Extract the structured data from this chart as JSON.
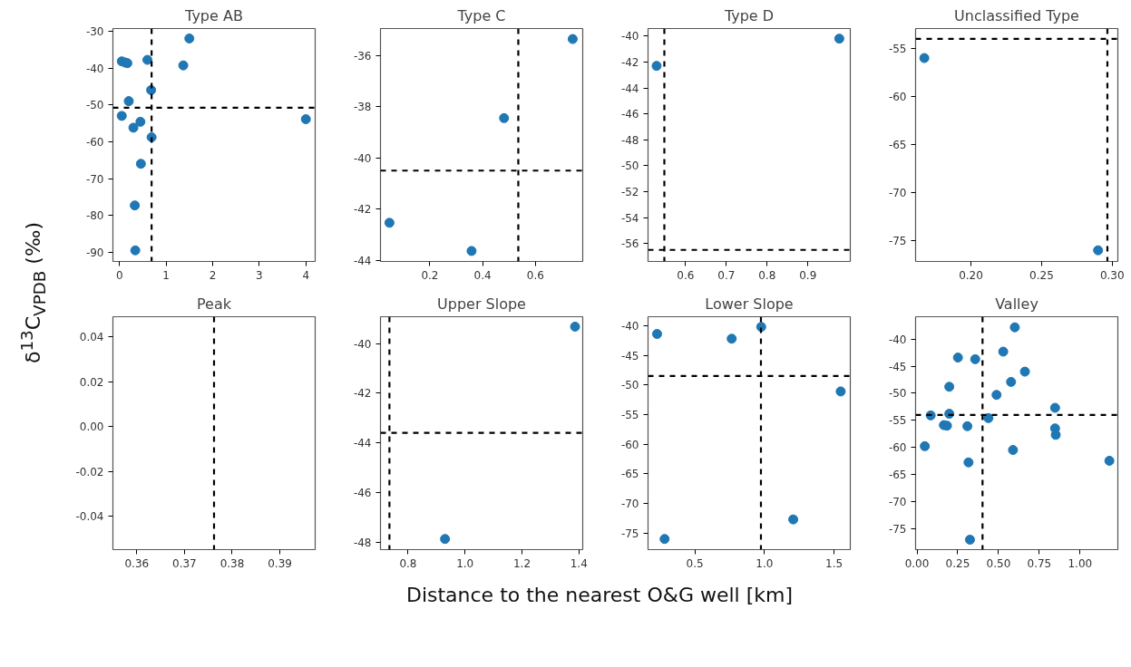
{
  "chart_data": [
    {
      "type": "scatter",
      "title": "Type AB",
      "xlabel": "Distance to the nearest O&G well [km]",
      "ylabel": "δ$^{13}$C$_{VPDB}$ (‰)",
      "marker": "circle",
      "color": "#1f77b4",
      "x": [
        0.05,
        0.12,
        0.17,
        0.6,
        1.5,
        1.37,
        0.68,
        0.2,
        0.05,
        0.45,
        0.3,
        0.69,
        0.46,
        0.33,
        0.34,
        4.0
      ],
      "values": [
        -38.2,
        -38.5,
        -38.7,
        -37.8,
        -32,
        -39.3,
        -46,
        -49,
        -53,
        -54.6,
        -56.2,
        -58.8,
        -66,
        -77.3,
        -89.5,
        -53.9
      ],
      "xlim": [
        -0.14,
        4.2
      ],
      "ylim": [
        -92.5,
        -29.3
      ],
      "xticks": [
        0,
        1,
        2,
        3,
        4
      ],
      "yticks": [
        -90,
        -80,
        -70,
        -60,
        -50,
        -40,
        -30
      ],
      "ref_lines": [
        {
          "axis": "x",
          "value": 0.69,
          "line_style": "dashed"
        },
        {
          "axis": "y",
          "value": -50.8,
          "line_style": "dashed"
        }
      ]
    },
    {
      "type": "scatter",
      "title": "Type C",
      "marker": "circle",
      "color": "#1f77b4",
      "x": [
        0.047,
        0.358,
        0.481,
        0.741
      ],
      "values": [
        -42.54,
        -43.64,
        -38.45,
        -35.36
      ],
      "xlim": [
        0.013,
        0.779
      ],
      "ylim": [
        -44.05,
        -34.95
      ],
      "xticks": [
        0.2,
        0.4,
        0.6
      ],
      "yticks": [
        -44,
        -42,
        -40,
        -38,
        -36
      ],
      "ref_lines": [
        {
          "axis": "x",
          "value": 0.535,
          "line_style": "dashed"
        },
        {
          "axis": "y",
          "value": -40.5,
          "line_style": "dashed"
        }
      ]
    },
    {
      "type": "scatter",
      "title": "Type D",
      "marker": "circle",
      "color": "#1f77b4",
      "x": [
        0.529,
        0.977
      ],
      "values": [
        -42.3,
        -40.2
      ],
      "xlim": [
        0.508,
        1.004
      ],
      "ylim": [
        -57.39,
        -39.42
      ],
      "xticks": [
        0.6,
        0.7,
        0.8,
        0.9
      ],
      "yticks": [
        -56,
        -54,
        -52,
        -50,
        -48,
        -46,
        -44,
        -42,
        -40
      ],
      "ref_lines": [
        {
          "axis": "x",
          "value": 0.548,
          "line_style": "dashed"
        },
        {
          "axis": "y",
          "value": -56.5,
          "line_style": "dashed"
        }
      ]
    },
    {
      "type": "scatter",
      "title": "Unclassified Type",
      "marker": "circle",
      "color": "#1f77b4",
      "x": [
        0.167,
        0.29
      ],
      "values": [
        -56.0,
        -76.0
      ],
      "xlim": [
        0.1608,
        0.304
      ],
      "ylim": [
        -77.16,
        -52.93
      ],
      "xticks": [
        {
          "value": 0.2,
          "label": "0.20"
        },
        0.25,
        {
          "value": 0.3,
          "label": "0.30"
        }
      ],
      "yticks": [
        -75,
        -70,
        -65,
        -60,
        -55
      ],
      "ref_lines": [
        {
          "axis": "x",
          "value": 0.2966,
          "line_style": "dashed"
        },
        {
          "axis": "y",
          "value": -54,
          "line_style": "dashed"
        }
      ]
    },
    {
      "type": "scatter",
      "title": "Peak",
      "xlim": [
        0.355,
        0.3974
      ],
      "ylim": [
        -0.0549,
        0.049
      ],
      "xticks": [
        0.36,
        0.37,
        0.38,
        0.39
      ],
      "yticks": [
        -0.04,
        -0.02,
        {
          "value": 0,
          "label": "0.00"
        },
        0.02,
        0.04
      ],
      "ref_lines": [
        {
          "axis": "x",
          "value": 0.3762,
          "line_style": "dashed"
        }
      ]
    },
    {
      "type": "scatter",
      "title": "Upper Slope",
      "marker": "circle",
      "color": "#1f77b4",
      "x": [
        1.3865,
        0.9297
      ],
      "values": [
        -39.32,
        -47.88
      ],
      "xlim": [
        0.703,
        1.4135
      ],
      "ylim": [
        -48.31,
        -38.92
      ],
      "xticks": [
        0.8,
        {
          "value": 1,
          "label": "1.0"
        },
        1.2,
        1.4
      ],
      "yticks": [
        -48,
        -46,
        -44,
        -42,
        -40
      ],
      "ref_lines": [
        {
          "axis": "x",
          "value": 0.7345,
          "line_style": "dashed"
        },
        {
          "axis": "y",
          "value": -43.6,
          "line_style": "dashed"
        }
      ]
    },
    {
      "type": "scatter",
      "title": "Lower Slope",
      "marker": "circle",
      "color": "#1f77b4",
      "x": [
        0.229,
        0.283,
        0.765,
        0.977,
        1.207,
        1.548
      ],
      "values": [
        -41.4,
        -76.0,
        -42.2,
        -40.2,
        -72.7,
        -51.1
      ],
      "xlim": [
        0.164,
        1.617
      ],
      "ylim": [
        -77.8,
        -38.49
      ],
      "xticks": [
        0.5,
        {
          "value": 1,
          "label": "1.0"
        },
        1.5
      ],
      "yticks": [
        -75,
        -70,
        -65,
        -60,
        -55,
        -50,
        -45,
        -40
      ],
      "ref_lines": [
        {
          "axis": "x",
          "value": 0.975,
          "line_style": "dashed"
        },
        {
          "axis": "y",
          "value": -48.5,
          "line_style": "dashed"
        }
      ]
    },
    {
      "type": "scatter",
      "title": "Valley",
      "marker": "circle",
      "color": "#1f77b4",
      "x": [
        0.6,
        0.529,
        0.251,
        0.357,
        0.662,
        0.577,
        0.198,
        0.488,
        0.847,
        0.084,
        0.198,
        0.438,
        0.165,
        0.184,
        0.309,
        0.847,
        0.851,
        0.048,
        0.589,
        0.316,
        1.18,
        0.325
      ],
      "values": [
        -37.8,
        -42.3,
        -43.4,
        -43.7,
        -46.0,
        -47.9,
        -48.8,
        -50.3,
        -52.7,
        -54.1,
        -53.8,
        -54.6,
        -55.9,
        -56.0,
        -56.1,
        -56.5,
        -57.7,
        -59.8,
        -60.5,
        -62.8,
        -62.5,
        -77.1
      ],
      "xlim": [
        -0.0086,
        1.232
      ],
      "ylim": [
        -78.94,
        -35.84
      ],
      "xticks": [
        {
          "value": 0,
          "label": "0.00"
        },
        0.25,
        {
          "value": 0.5,
          "label": "0.50"
        },
        0.75,
        {
          "value": 1,
          "label": "1.00"
        }
      ],
      "yticks": [
        -75,
        -70,
        -65,
        -60,
        -55,
        -50,
        -45,
        -40
      ],
      "ref_lines": [
        {
          "axis": "x",
          "value": 0.402,
          "line_style": "dashed"
        },
        {
          "axis": "y",
          "value": -54.0,
          "line_style": "dashed"
        }
      ]
    }
  ]
}
